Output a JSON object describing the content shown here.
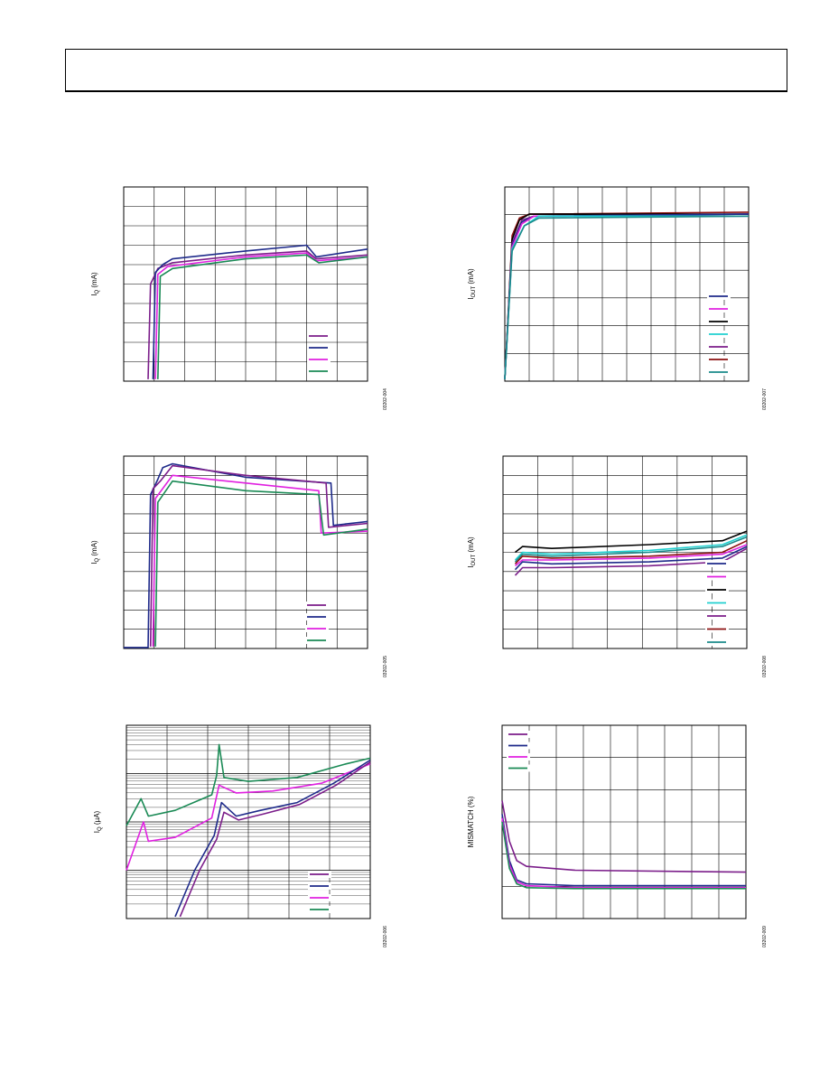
{
  "header": {
    "title": ""
  },
  "charts": [
    {
      "id": "c1",
      "ylabel_main": "I",
      "ylabel_sub": "Q",
      "ylabel_unit": " (mA)",
      "figcode": "03202-004",
      "grid": {
        "cols": 8,
        "rows": 10
      },
      "legend_colors": [
        "#7b1d8a",
        "#1e2a8a",
        "#e020e0",
        "#1a8a55"
      ],
      "series": [
        {
          "color": "#7b1d8a",
          "points": [
            [
              0.1,
              0.99
            ],
            [
              0.11,
              0.5
            ],
            [
              0.14,
              0.42
            ],
            [
              0.2,
              0.39
            ],
            [
              0.5,
              0.35
            ],
            [
              0.75,
              0.33
            ],
            [
              0.79,
              0.37
            ],
            [
              1.0,
              0.35
            ]
          ]
        },
        {
          "color": "#1e2a8a",
          "points": [
            [
              0.12,
              0.99
            ],
            [
              0.13,
              0.44
            ],
            [
              0.16,
              0.4
            ],
            [
              0.2,
              0.37
            ],
            [
              0.5,
              0.33
            ],
            [
              0.75,
              0.3
            ],
            [
              0.79,
              0.36
            ],
            [
              1.0,
              0.32
            ]
          ]
        },
        {
          "color": "#e020e0",
          "points": [
            [
              0.13,
              0.99
            ],
            [
              0.14,
              0.45
            ],
            [
              0.18,
              0.41
            ],
            [
              0.5,
              0.36
            ],
            [
              0.75,
              0.34
            ],
            [
              0.79,
              0.38
            ],
            [
              1.0,
              0.36
            ]
          ]
        },
        {
          "color": "#1a8a55",
          "points": [
            [
              0.14,
              0.99
            ],
            [
              0.15,
              0.46
            ],
            [
              0.2,
              0.42
            ],
            [
              0.5,
              0.37
            ],
            [
              0.75,
              0.35
            ],
            [
              0.8,
              0.39
            ],
            [
              1.0,
              0.36
            ]
          ]
        }
      ]
    },
    {
      "id": "c2",
      "ylabel_main": "I",
      "ylabel_sub": "OUT",
      "ylabel_unit": " (mA)",
      "figcode": "03202-007",
      "grid": {
        "cols": 10,
        "rows": 7
      },
      "legend_colors": [
        "#1e2a8a",
        "#e020e0",
        "#000000",
        "#20d0d0",
        "#7b1d8a",
        "#8b1010",
        "#1a8a8a"
      ],
      "series": [
        {
          "color": "#8b1010",
          "points": [
            [
              0.0,
              0.99
            ],
            [
              0.03,
              0.25
            ],
            [
              0.06,
              0.16
            ],
            [
              0.1,
              0.14
            ],
            [
              1.0,
              0.13
            ]
          ]
        },
        {
          "color": "#000000",
          "points": [
            [
              0.0,
              0.99
            ],
            [
              0.03,
              0.27
            ],
            [
              0.06,
              0.17
            ],
            [
              0.1,
              0.14
            ],
            [
              1.0,
              0.14
            ]
          ]
        },
        {
          "color": "#7b1d8a",
          "points": [
            [
              0.0,
              0.99
            ],
            [
              0.03,
              0.29
            ],
            [
              0.07,
              0.17
            ],
            [
              0.12,
              0.15
            ],
            [
              1.0,
              0.14
            ]
          ]
        },
        {
          "color": "#1e2a8a",
          "points": [
            [
              0.0,
              0.99
            ],
            [
              0.03,
              0.3
            ],
            [
              0.07,
              0.18
            ],
            [
              0.12,
              0.15
            ],
            [
              1.0,
              0.14
            ]
          ]
        },
        {
          "color": "#e020e0",
          "points": [
            [
              0.0,
              0.99
            ],
            [
              0.03,
              0.31
            ],
            [
              0.07,
              0.19
            ],
            [
              0.12,
              0.15
            ],
            [
              1.0,
              0.15
            ]
          ]
        },
        {
          "color": "#20d0d0",
          "points": [
            [
              0.0,
              0.99
            ],
            [
              0.03,
              0.32
            ],
            [
              0.08,
              0.2
            ],
            [
              0.14,
              0.15
            ],
            [
              1.0,
              0.15
            ]
          ]
        },
        {
          "color": "#1a8a8a",
          "points": [
            [
              0.0,
              0.99
            ],
            [
              0.03,
              0.33
            ],
            [
              0.08,
              0.2
            ],
            [
              0.14,
              0.16
            ],
            [
              1.0,
              0.15
            ]
          ]
        }
      ]
    },
    {
      "id": "c3",
      "ylabel_main": "I",
      "ylabel_sub": "Q",
      "ylabel_unit": " (mA)",
      "figcode": "03202-005",
      "grid": {
        "cols": 8,
        "rows": 10
      },
      "legend_colors": [
        "#7b1d8a",
        "#1e2a8a",
        "#e020e0",
        "#1a8a55"
      ],
      "series": [
        {
          "color": "#1e2a8a",
          "points": [
            [
              0.0,
              0.995
            ],
            [
              0.1,
              0.995
            ],
            [
              0.11,
              0.2
            ],
            [
              0.14,
              0.12
            ],
            [
              0.16,
              0.06
            ],
            [
              0.2,
              0.04
            ],
            [
              0.5,
              0.11
            ],
            [
              0.85,
              0.14
            ],
            [
              0.86,
              0.36
            ],
            [
              1.0,
              0.34
            ]
          ]
        },
        {
          "color": "#7b1d8a",
          "points": [
            [
              0.11,
              0.99
            ],
            [
              0.12,
              0.17
            ],
            [
              0.15,
              0.13
            ],
            [
              0.2,
              0.05
            ],
            [
              0.5,
              0.1
            ],
            [
              0.83,
              0.14
            ],
            [
              0.84,
              0.37
            ],
            [
              1.0,
              0.35
            ]
          ]
        },
        {
          "color": "#e020e0",
          "points": [
            [
              0.12,
              0.99
            ],
            [
              0.13,
              0.22
            ],
            [
              0.2,
              0.1
            ],
            [
              0.5,
              0.14
            ],
            [
              0.8,
              0.18
            ],
            [
              0.81,
              0.4
            ],
            [
              1.0,
              0.39
            ]
          ]
        },
        {
          "color": "#1a8a55",
          "points": [
            [
              0.13,
              0.99
            ],
            [
              0.14,
              0.24
            ],
            [
              0.2,
              0.13
            ],
            [
              0.5,
              0.18
            ],
            [
              0.8,
              0.2
            ],
            [
              0.82,
              0.41
            ],
            [
              1.0,
              0.38
            ]
          ]
        }
      ]
    },
    {
      "id": "c4",
      "ylabel_main": "I",
      "ylabel_sub": "OUT",
      "ylabel_unit": " (mA)",
      "figcode": "03202-008",
      "grid": {
        "cols": 7,
        "rows": 10
      },
      "legend_colors": [
        "#1e2a8a",
        "#e020e0",
        "#000000",
        "#20d0d0",
        "#7b1d8a",
        "#8b1010",
        "#1a8a8a"
      ],
      "series": [
        {
          "color": "#000000",
          "points": [
            [
              0.05,
              0.5
            ],
            [
              0.08,
              0.47
            ],
            [
              0.2,
              0.48
            ],
            [
              0.6,
              0.46
            ],
            [
              0.9,
              0.44
            ],
            [
              1.0,
              0.39
            ]
          ]
        },
        {
          "color": "#20d0d0",
          "points": [
            [
              0.05,
              0.54
            ],
            [
              0.08,
              0.5
            ],
            [
              0.2,
              0.51
            ],
            [
              0.6,
              0.49
            ],
            [
              0.9,
              0.46
            ],
            [
              1.0,
              0.41
            ]
          ]
        },
        {
          "color": "#1a8a8a",
          "points": [
            [
              0.05,
              0.55
            ],
            [
              0.08,
              0.51
            ],
            [
              0.2,
              0.52
            ],
            [
              0.6,
              0.5
            ],
            [
              0.9,
              0.47
            ],
            [
              1.0,
              0.42
            ]
          ]
        },
        {
          "color": "#8b1010",
          "points": [
            [
              0.05,
              0.56
            ],
            [
              0.08,
              0.52
            ],
            [
              0.2,
              0.53
            ],
            [
              0.6,
              0.52
            ],
            [
              0.9,
              0.5
            ],
            [
              1.0,
              0.44
            ]
          ]
        },
        {
          "color": "#e020e0",
          "points": [
            [
              0.05,
              0.57
            ],
            [
              0.08,
              0.54
            ],
            [
              0.2,
              0.54
            ],
            [
              0.6,
              0.53
            ],
            [
              0.9,
              0.51
            ],
            [
              1.0,
              0.46
            ]
          ]
        },
        {
          "color": "#1e2a8a",
          "points": [
            [
              0.05,
              0.59
            ],
            [
              0.08,
              0.55
            ],
            [
              0.2,
              0.56
            ],
            [
              0.6,
              0.55
            ],
            [
              0.9,
              0.53
            ],
            [
              1.0,
              0.47
            ]
          ]
        },
        {
          "color": "#7b1d8a",
          "points": [
            [
              0.05,
              0.62
            ],
            [
              0.08,
              0.58
            ],
            [
              0.2,
              0.58
            ],
            [
              0.6,
              0.57
            ],
            [
              0.9,
              0.55
            ],
            [
              1.0,
              0.48
            ]
          ]
        }
      ]
    },
    {
      "id": "c5",
      "ylabel_main": "I",
      "ylabel_sub": "Q",
      "ylabel_unit": " (µA)",
      "figcode": "03202-006",
      "grid": {
        "cols": 6,
        "rows": 4,
        "log": true
      },
      "legend_colors": [
        "#7b1d8a",
        "#1e2a8a",
        "#e020e0",
        "#1a8a55"
      ],
      "series": [
        {
          "color": "#1a8a55",
          "points": [
            [
              0.0,
              0.52
            ],
            [
              0.06,
              0.38
            ],
            [
              0.09,
              0.47
            ],
            [
              0.2,
              0.44
            ],
            [
              0.35,
              0.36
            ],
            [
              0.37,
              0.26
            ],
            [
              0.38,
              0.1
            ],
            [
              0.4,
              0.27
            ],
            [
              0.5,
              0.29
            ],
            [
              0.7,
              0.27
            ],
            [
              0.9,
              0.2
            ],
            [
              1.0,
              0.17
            ]
          ]
        },
        {
          "color": "#e020e0",
          "points": [
            [
              0.0,
              0.75
            ],
            [
              0.07,
              0.5
            ],
            [
              0.09,
              0.6
            ],
            [
              0.2,
              0.58
            ],
            [
              0.35,
              0.48
            ],
            [
              0.38,
              0.31
            ],
            [
              0.45,
              0.35
            ],
            [
              0.6,
              0.34
            ],
            [
              0.8,
              0.3
            ],
            [
              1.0,
              0.2
            ]
          ]
        },
        {
          "color": "#1e2a8a",
          "points": [
            [
              0.2,
              0.99
            ],
            [
              0.28,
              0.75
            ],
            [
              0.36,
              0.57
            ],
            [
              0.39,
              0.4
            ],
            [
              0.45,
              0.47
            ],
            [
              0.55,
              0.44
            ],
            [
              0.7,
              0.4
            ],
            [
              0.85,
              0.3
            ],
            [
              1.0,
              0.18
            ]
          ]
        },
        {
          "color": "#7b1d8a",
          "points": [
            [
              0.22,
              0.99
            ],
            [
              0.3,
              0.75
            ],
            [
              0.37,
              0.59
            ],
            [
              0.4,
              0.45
            ],
            [
              0.46,
              0.49
            ],
            [
              0.56,
              0.46
            ],
            [
              0.71,
              0.41
            ],
            [
              0.86,
              0.31
            ],
            [
              1.0,
              0.19
            ]
          ]
        }
      ]
    },
    {
      "id": "c6",
      "ylabel_main": "MISMATCH (%)",
      "ylabel_sub": "",
      "ylabel_unit": "",
      "figcode": "03202-009",
      "grid": {
        "cols": 9,
        "rows": 6
      },
      "legend_colors": [
        "#7b1d8a",
        "#1e2a8a",
        "#e020e0",
        "#1a8a55"
      ],
      "series": [
        {
          "color": "#7b1d8a",
          "points": [
            [
              0.0,
              0.39
            ],
            [
              0.03,
              0.6
            ],
            [
              0.06,
              0.7
            ],
            [
              0.1,
              0.73
            ],
            [
              0.3,
              0.75
            ],
            [
              1.0,
              0.76
            ]
          ]
        },
        {
          "color": "#1e2a8a",
          "points": [
            [
              0.0,
              0.46
            ],
            [
              0.03,
              0.7
            ],
            [
              0.06,
              0.8
            ],
            [
              0.1,
              0.82
            ],
            [
              0.3,
              0.83
            ],
            [
              1.0,
              0.83
            ]
          ]
        },
        {
          "color": "#e020e0",
          "points": [
            [
              0.0,
              0.48
            ],
            [
              0.03,
              0.72
            ],
            [
              0.06,
              0.81
            ],
            [
              0.1,
              0.83
            ],
            [
              0.3,
              0.84
            ],
            [
              1.0,
              0.84
            ]
          ]
        },
        {
          "color": "#1a8a55",
          "points": [
            [
              0.0,
              0.5
            ],
            [
              0.03,
              0.74
            ],
            [
              0.06,
              0.82
            ],
            [
              0.1,
              0.84
            ],
            [
              0.3,
              0.845
            ],
            [
              1.0,
              0.845
            ]
          ]
        }
      ]
    }
  ]
}
